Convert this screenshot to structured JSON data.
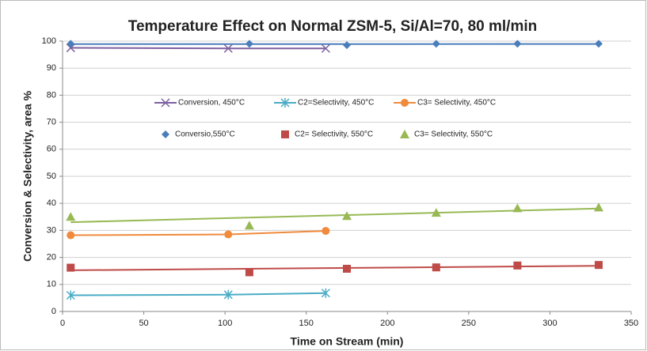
{
  "chart_data": {
    "type": "scatter",
    "title": "Temperature Effect on Normal ZSM-5, Si/Al=70, 80 ml/min",
    "x_label": "Time on Stream (min)",
    "y_label": "Conversion & Selectivity, area %",
    "xlim": [
      0,
      350
    ],
    "xticks": [
      0,
      50,
      100,
      150,
      200,
      250,
      300,
      350
    ],
    "ylim": [
      0,
      100
    ],
    "yticks": [
      0,
      10,
      20,
      30,
      40,
      50,
      60,
      70,
      80,
      90,
      100
    ],
    "grid": true,
    "series": [
      {
        "name": "Conversion, 450°C",
        "color": "#7d5fa0",
        "marker": "x",
        "line": true,
        "trendline": false,
        "x": [
          5,
          102,
          162
        ],
        "values": [
          97.5,
          97.3,
          97.3
        ]
      },
      {
        "name": "C2=Selectivity, 450°C",
        "color": "#4aacc5",
        "marker": "star",
        "line": true,
        "trendline": false,
        "x": [
          5,
          102,
          162
        ],
        "values": [
          6,
          6.2,
          6.8
        ]
      },
      {
        "name": "C3= Selectivity, 450°C",
        "color": "#f08a3c",
        "marker": "circle",
        "line": true,
        "trendline": false,
        "x": [
          5,
          102,
          162
        ],
        "values": [
          28.2,
          28.5,
          29.8
        ]
      },
      {
        "name": "Conversio,550°C",
        "color": "#4a7ebb",
        "marker": "diamond",
        "line": false,
        "trendline": true,
        "x": [
          5,
          115,
          175,
          230,
          280,
          330
        ],
        "values": [
          99,
          99,
          98.5,
          99,
          99,
          99
        ]
      },
      {
        "name": "C2= Selectivity, 550°C",
        "color": "#be4b48",
        "marker": "square",
        "line": false,
        "trendline": true,
        "x": [
          5,
          115,
          175,
          230,
          280,
          330
        ],
        "values": [
          16.2,
          14.5,
          15.8,
          16.3,
          17,
          17.2
        ]
      },
      {
        "name": "C3= Selectivity, 550°C",
        "color": "#98b954",
        "marker": "triangle",
        "line": false,
        "trendline": true,
        "x": [
          5,
          115,
          175,
          230,
          280,
          330
        ],
        "values": [
          35,
          31.8,
          35.3,
          36.5,
          38.2,
          38.5
        ]
      }
    ]
  }
}
